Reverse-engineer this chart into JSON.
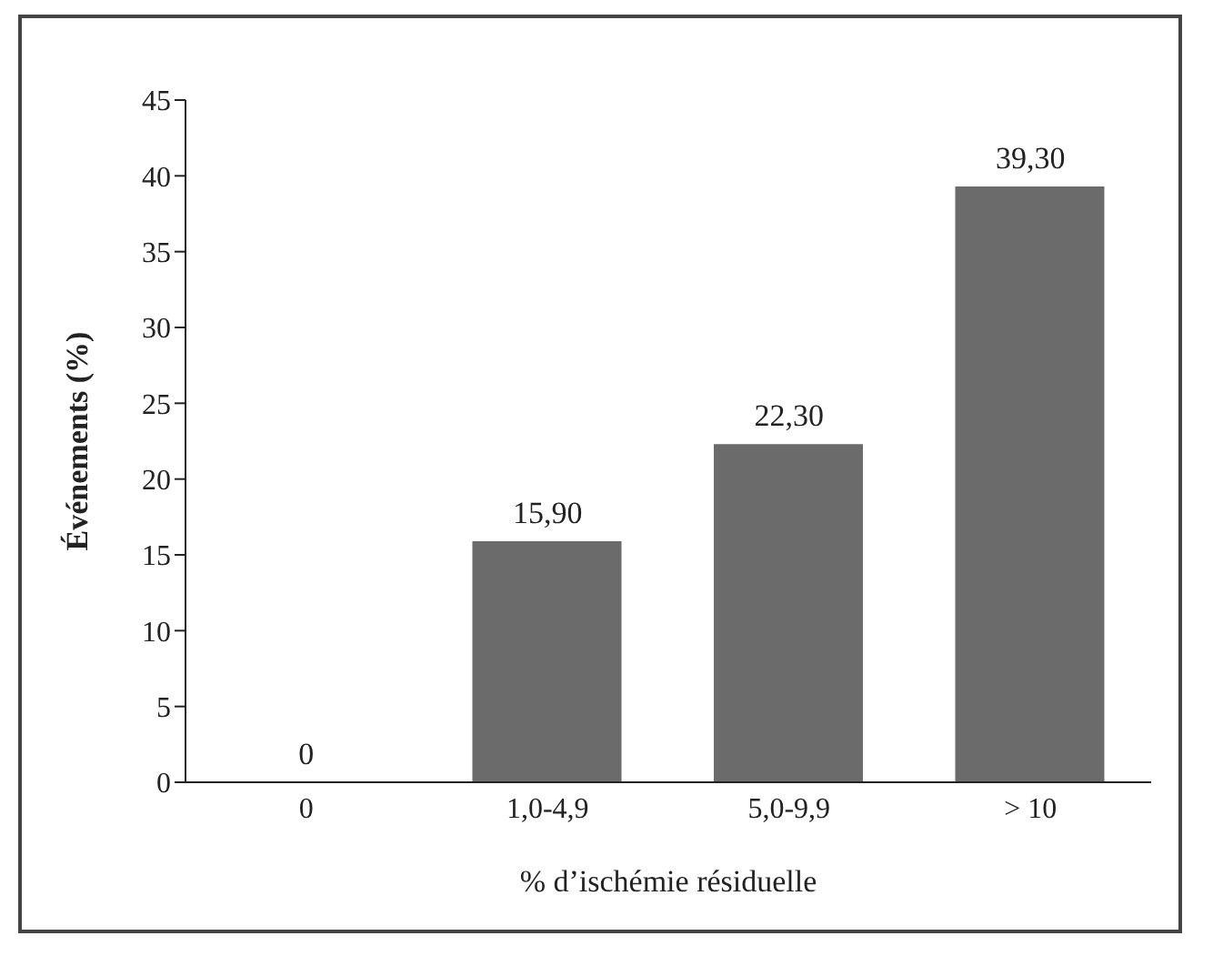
{
  "chart_data": {
    "type": "bar",
    "xlabel": "% d’ischémie résiduelle",
    "ylabel": "Événements (%)",
    "categories": [
      "0",
      "1,0-4,9",
      "5,0-9,9",
      "> 10"
    ],
    "values": [
      0,
      15.9,
      22.3,
      39.3
    ],
    "value_labels": [
      "0",
      "15,90",
      "22,30",
      "39,30"
    ],
    "color": "#6b6b6b",
    "ylim": [
      0,
      45
    ],
    "yticks": [
      0,
      5,
      10,
      15,
      20,
      25,
      30,
      35,
      40,
      45
    ],
    "grid": false,
    "legend": false
  }
}
